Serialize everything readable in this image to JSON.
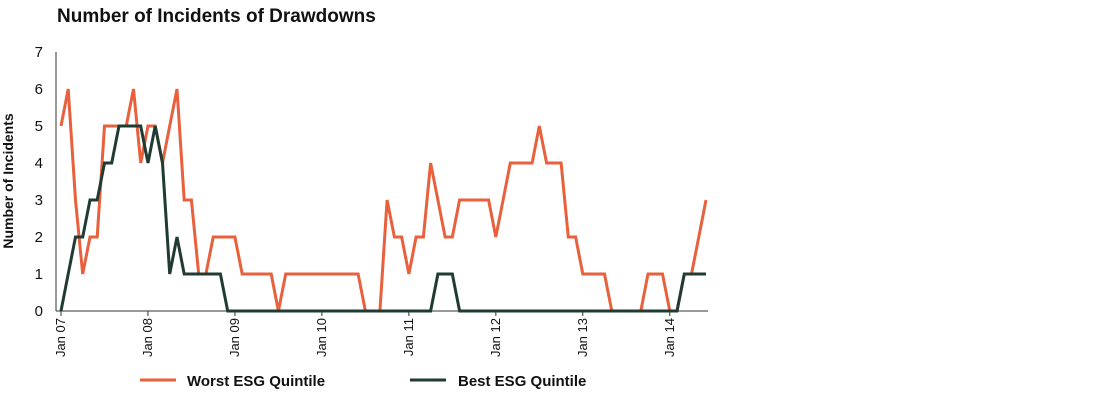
{
  "chart_data": {
    "type": "line",
    "title": "Number of Incidents of Drawdowns",
    "xlabel": "",
    "ylabel": "Number of Incidents",
    "ylim": [
      0,
      7
    ],
    "yticks": [
      "0",
      "1",
      "2",
      "3",
      "4",
      "5",
      "6",
      "7"
    ],
    "xtick_labels": [
      "Jan 07",
      "Jan 08",
      "Jan 09",
      "Jan 10",
      "Jan 11",
      "Jan 12",
      "Jan 13",
      "Jan 14"
    ],
    "legend_position": "bottom",
    "grid": false,
    "colors": {
      "worst": "#e8603c",
      "best": "#1f3b33"
    },
    "series": [
      {
        "name": "Worst ESG Quintile",
        "color": "#e8603c",
        "points": [
          [
            0,
            5
          ],
          [
            1,
            6
          ],
          [
            2,
            3
          ],
          [
            3,
            1
          ],
          [
            4,
            2
          ],
          [
            5,
            2
          ],
          [
            6,
            5
          ],
          [
            7,
            5
          ],
          [
            8,
            5
          ],
          [
            9,
            5
          ],
          [
            10,
            6
          ],
          [
            11,
            4
          ],
          [
            12,
            5
          ],
          [
            13,
            5
          ],
          [
            14,
            4
          ],
          [
            15,
            5
          ],
          [
            16,
            6
          ],
          [
            17,
            3
          ],
          [
            18,
            3
          ],
          [
            19,
            1
          ],
          [
            20,
            1
          ],
          [
            21,
            2
          ],
          [
            22,
            2
          ],
          [
            23,
            2
          ],
          [
            24,
            2
          ],
          [
            25,
            1
          ],
          [
            26,
            1
          ],
          [
            27,
            1
          ],
          [
            28,
            1
          ],
          [
            29,
            1
          ],
          [
            30,
            0
          ],
          [
            31,
            1
          ],
          [
            32,
            1
          ],
          [
            33,
            1
          ],
          [
            34,
            1
          ],
          [
            35,
            1
          ],
          [
            36,
            1
          ],
          [
            37,
            1
          ],
          [
            38,
            1
          ],
          [
            39,
            1
          ],
          [
            40,
            1
          ],
          [
            41,
            1
          ],
          [
            42,
            0
          ],
          [
            43,
            0
          ],
          [
            44,
            0
          ],
          [
            45,
            3
          ],
          [
            46,
            2
          ],
          [
            47,
            2
          ],
          [
            48,
            1
          ],
          [
            49,
            2
          ],
          [
            50,
            2
          ],
          [
            51,
            4
          ],
          [
            52,
            3
          ],
          [
            53,
            2
          ],
          [
            54,
            2
          ],
          [
            55,
            3
          ],
          [
            56,
            3
          ],
          [
            57,
            3
          ],
          [
            58,
            3
          ],
          [
            59,
            3
          ],
          [
            60,
            2
          ],
          [
            61,
            3
          ],
          [
            62,
            4
          ],
          [
            63,
            4
          ],
          [
            64,
            4
          ],
          [
            65,
            4
          ],
          [
            66,
            5
          ],
          [
            67,
            4
          ],
          [
            68,
            4
          ],
          [
            69,
            4
          ],
          [
            70,
            2
          ],
          [
            71,
            2
          ],
          [
            72,
            1
          ],
          [
            73,
            1
          ],
          [
            74,
            1
          ],
          [
            75,
            1
          ],
          [
            76,
            0
          ],
          [
            77,
            0
          ],
          [
            78,
            0
          ],
          [
            79,
            0
          ],
          [
            80,
            0
          ],
          [
            81,
            1
          ],
          [
            82,
            1
          ],
          [
            83,
            1
          ],
          [
            84,
            0
          ],
          [
            85,
            0
          ],
          [
            86,
            1
          ],
          [
            87,
            1
          ],
          [
            88,
            2
          ],
          [
            89,
            3
          ]
        ]
      },
      {
        "name": "Best ESG Quintile",
        "color": "#1f3b33",
        "points": [
          [
            0,
            0
          ],
          [
            1,
            1
          ],
          [
            2,
            2
          ],
          [
            3,
            2
          ],
          [
            4,
            3
          ],
          [
            5,
            3
          ],
          [
            6,
            4
          ],
          [
            7,
            4
          ],
          [
            8,
            5
          ],
          [
            9,
            5
          ],
          [
            10,
            5
          ],
          [
            11,
            5
          ],
          [
            12,
            4
          ],
          [
            13,
            5
          ],
          [
            14,
            4
          ],
          [
            15,
            1
          ],
          [
            16,
            2
          ],
          [
            17,
            1
          ],
          [
            18,
            1
          ],
          [
            19,
            1
          ],
          [
            20,
            1
          ],
          [
            21,
            1
          ],
          [
            22,
            1
          ],
          [
            23,
            0
          ],
          [
            24,
            0
          ],
          [
            25,
            0
          ],
          [
            26,
            0
          ],
          [
            27,
            0
          ],
          [
            28,
            0
          ],
          [
            29,
            0
          ],
          [
            30,
            0
          ],
          [
            31,
            0
          ],
          [
            32,
            0
          ],
          [
            33,
            0
          ],
          [
            34,
            0
          ],
          [
            35,
            0
          ],
          [
            36,
            0
          ],
          [
            37,
            0
          ],
          [
            38,
            0
          ],
          [
            39,
            0
          ],
          [
            40,
            0
          ],
          [
            41,
            0
          ],
          [
            42,
            0
          ],
          [
            43,
            0
          ],
          [
            44,
            0
          ],
          [
            45,
            0
          ],
          [
            46,
            0
          ],
          [
            47,
            0
          ],
          [
            48,
            0
          ],
          [
            49,
            0
          ],
          [
            50,
            0
          ],
          [
            51,
            0
          ],
          [
            52,
            1
          ],
          [
            53,
            1
          ],
          [
            54,
            1
          ],
          [
            55,
            0
          ],
          [
            56,
            0
          ],
          [
            57,
            0
          ],
          [
            58,
            0
          ],
          [
            59,
            0
          ],
          [
            60,
            0
          ],
          [
            61,
            0
          ],
          [
            62,
            0
          ],
          [
            63,
            0
          ],
          [
            64,
            0
          ],
          [
            65,
            0
          ],
          [
            66,
            0
          ],
          [
            67,
            0
          ],
          [
            68,
            0
          ],
          [
            69,
            0
          ],
          [
            70,
            0
          ],
          [
            71,
            0
          ],
          [
            72,
            0
          ],
          [
            73,
            0
          ],
          [
            74,
            0
          ],
          [
            75,
            0
          ],
          [
            76,
            0
          ],
          [
            77,
            0
          ],
          [
            78,
            0
          ],
          [
            79,
            0
          ],
          [
            80,
            0
          ],
          [
            81,
            0
          ],
          [
            82,
            0
          ],
          [
            83,
            0
          ],
          [
            84,
            0
          ],
          [
            85,
            0
          ],
          [
            86,
            1
          ],
          [
            87,
            1
          ],
          [
            88,
            1
          ],
          [
            89,
            1
          ]
        ]
      }
    ]
  }
}
